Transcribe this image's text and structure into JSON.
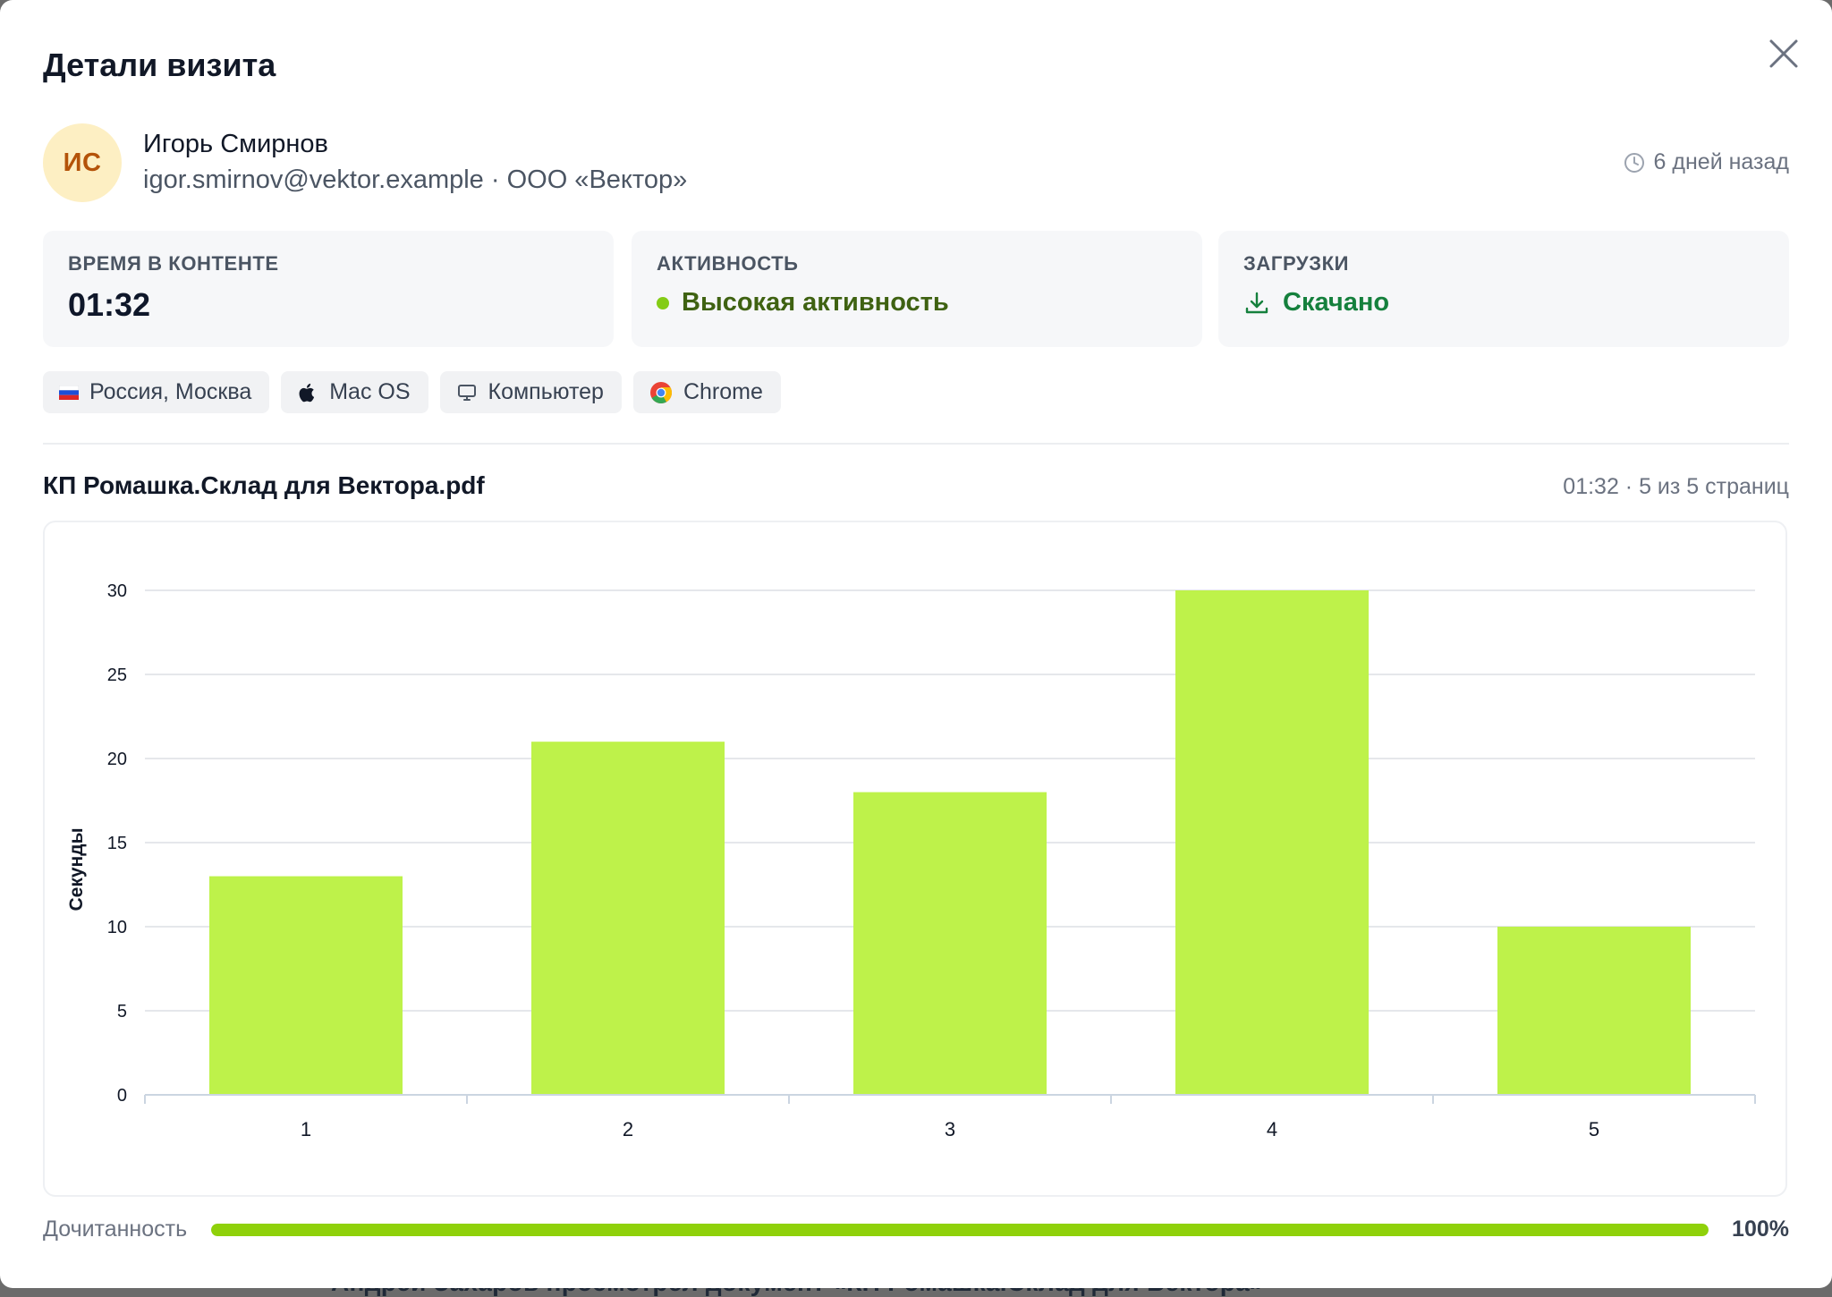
{
  "modal": {
    "title": "Детали визита",
    "close_icon": "close-icon"
  },
  "visitor": {
    "initials": "ИС",
    "name": "Игорь Смирнов",
    "meta": "igor.smirnov@vektor.example · ООО «Вектор»",
    "when": "6 дней назад",
    "when_icon": "clock-icon"
  },
  "stats": {
    "time": {
      "label": "Время в контенте",
      "value": "01:32"
    },
    "activity": {
      "label": "Активность",
      "value": "Высокая активность",
      "color": "#84cc16"
    },
    "downloads": {
      "label": "Загрузки",
      "value": "Скачано",
      "icon": "download-icon"
    }
  },
  "chips": [
    {
      "label": "Россия, Москва",
      "icon": "russia-flag-icon"
    },
    {
      "label": "Mac OS",
      "icon": "apple-icon"
    },
    {
      "label": "Компьютер",
      "icon": "monitor-icon"
    },
    {
      "label": "Chrome",
      "icon": "chrome-icon"
    }
  ],
  "document": {
    "title": "КП Ромашка.Склад для Вектора.pdf",
    "meta": "01:32 · 5 из 5 страниц"
  },
  "chart_data": {
    "type": "bar",
    "categories": [
      "1",
      "2",
      "3",
      "4",
      "5"
    ],
    "values": [
      13,
      21,
      18,
      30,
      10
    ],
    "ylabel": "Секунды",
    "xlabel": "",
    "ylim": [
      0,
      30
    ],
    "yticks": [
      0,
      5,
      10,
      15,
      20,
      25,
      30
    ],
    "grid": true,
    "bar_color": "#bef24a"
  },
  "completion": {
    "label": "Дочитанность",
    "value": "100%",
    "fraction": 1.0,
    "color": "#8fd10a"
  },
  "backdrop": {
    "text": "Андрей Захаров просмотрел документ «КП Ромашка.Склад для Вектора»"
  }
}
